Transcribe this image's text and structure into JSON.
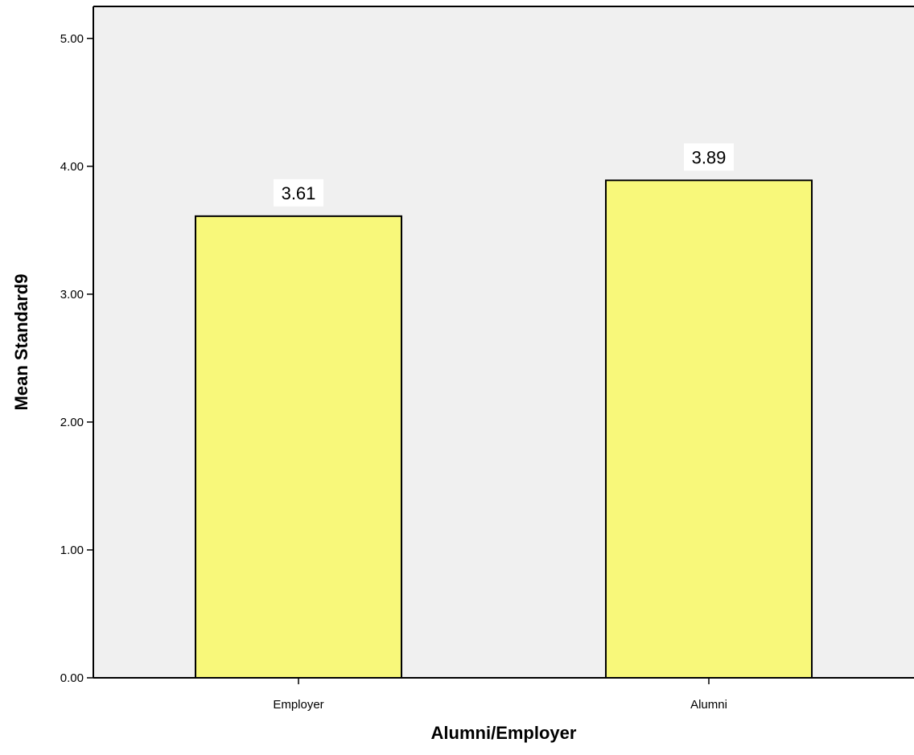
{
  "chart_data": {
    "type": "bar",
    "title": "",
    "xlabel": "Alumni/Employer",
    "ylabel": "Mean Standard9",
    "categories": [
      "Employer",
      "Alumni"
    ],
    "values": [
      3.61,
      3.89
    ],
    "data_labels": [
      "3.61",
      "3.89"
    ],
    "ylim": [
      0,
      5.25
    ],
    "yticks": [
      0,
      1,
      2,
      3,
      4,
      5
    ],
    "ytick_labels": [
      "0.00",
      "1.00",
      "2.00",
      "3.00",
      "4.00",
      "5.00"
    ],
    "grid": false,
    "legend": "none",
    "colors": {
      "plot_background": "#f0f0f0",
      "bar_fill": "#f8f87a",
      "bar_stroke": "#000000"
    }
  }
}
